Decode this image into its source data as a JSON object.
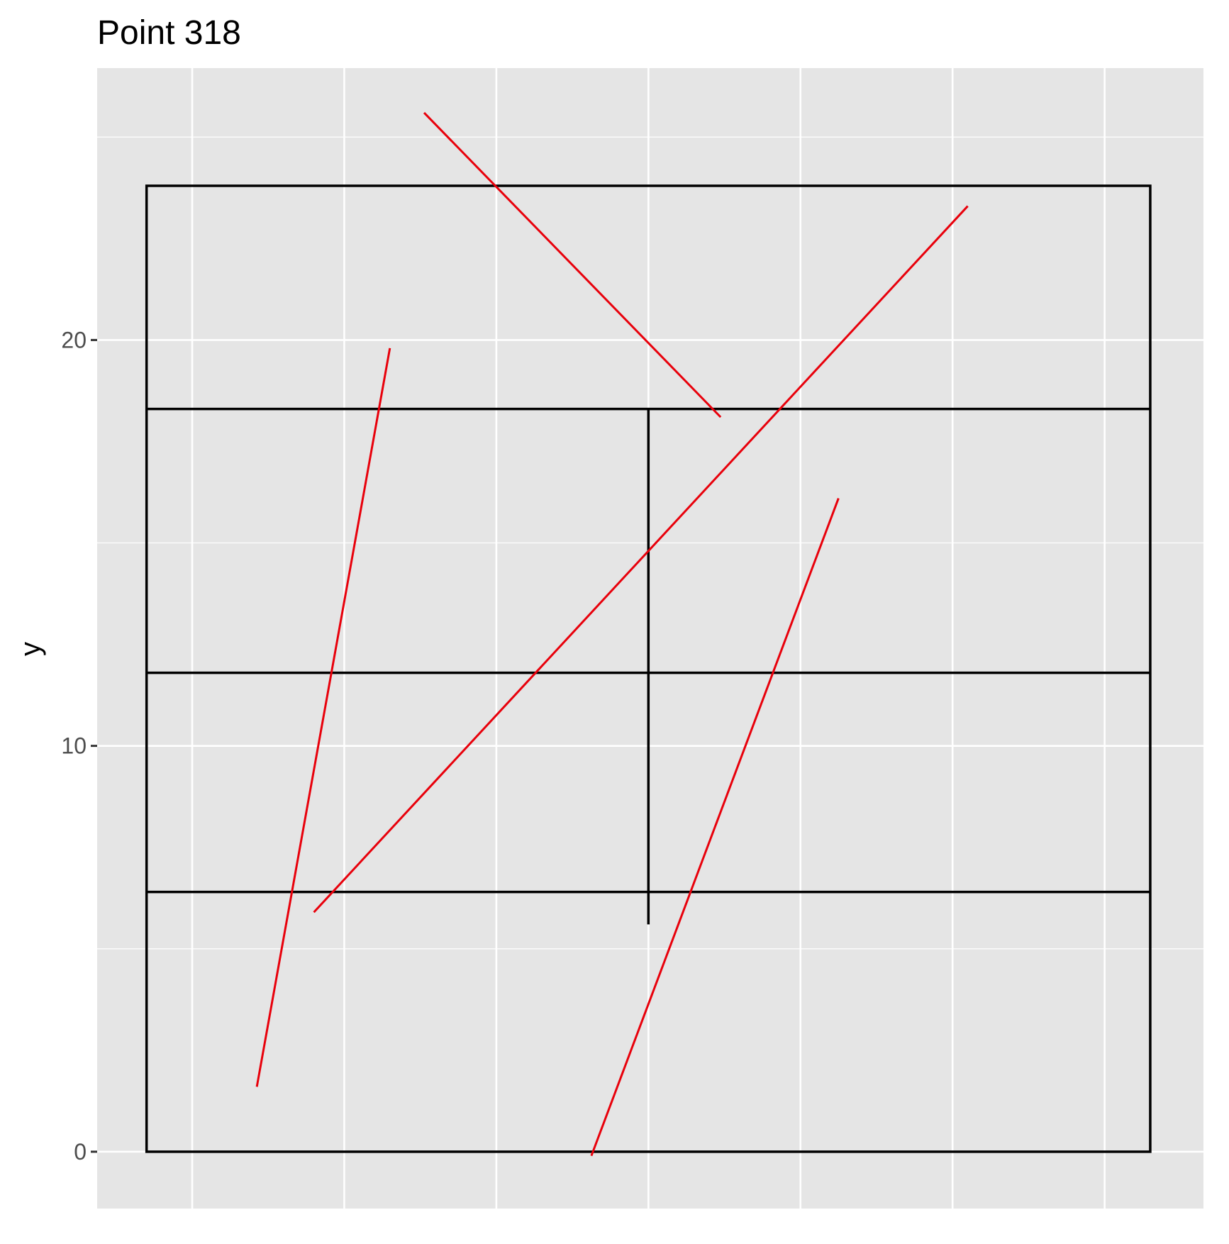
{
  "chart_data": {
    "type": "line",
    "title": "Point 318",
    "xlabel": "",
    "ylabel": "y",
    "xlim": [
      -2.5,
      26.6
    ],
    "ylim": [
      -1.4,
      26.7
    ],
    "x_gridlines": [
      0,
      4,
      8,
      12,
      16,
      20,
      24
    ],
    "y_ticks": [
      0,
      10,
      20
    ],
    "y_minor_gridlines": [
      5,
      15,
      25
    ],
    "grid": true,
    "background": "#e5e5e5",
    "box": {
      "outer": {
        "x": [
          -1.2,
          25.2
        ],
        "y": [
          0,
          23.8
        ]
      },
      "horizontal_lines": [
        {
          "y": 6.4,
          "x": [
            -1.2,
            25.2
          ]
        },
        {
          "y": 11.8,
          "x": [
            -1.2,
            25.2
          ]
        },
        {
          "y": 18.3,
          "x": [
            -1.2,
            25.2
          ]
        }
      ],
      "vertical_lines": [
        {
          "x": 12.0,
          "y": [
            5.6,
            18.3
          ]
        }
      ],
      "color": "#000000"
    },
    "series": [
      {
        "color": "#e8000b",
        "x": [
          1.7,
          5.2
        ],
        "y": [
          1.6,
          19.8
        ]
      },
      {
        "color": "#e8000b",
        "x": [
          6.1,
          13.9
        ],
        "y": [
          25.6,
          18.1
        ]
      },
      {
        "color": "#e8000b",
        "x": [
          3.2,
          20.4
        ],
        "y": [
          5.9,
          23.3
        ]
      },
      {
        "color": "#e8000b",
        "x": [
          10.5,
          17.0
        ],
        "y": [
          -0.1,
          16.1
        ]
      }
    ]
  }
}
